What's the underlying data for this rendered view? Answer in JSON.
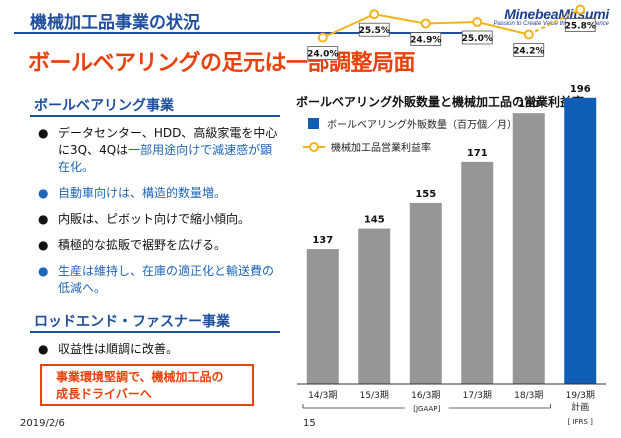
{
  "slide": {
    "title": "機械加工品事業の状況",
    "headline": "ボールベアリングの足元は一部調整局面",
    "date": "2019/2/6",
    "page": "15"
  },
  "logo": {
    "brand": "MinebeaMitsumi",
    "tagline": "Passion to Create Value through Difference"
  },
  "section1": {
    "title": "ボールベアリング事業",
    "bullets": [
      {
        "line1": "データセンター、HDD、高級家電を中心",
        "line2": "に3Q、4Qは一部用途向けで減速感が顕",
        "line3": "在化。",
        "color": "mixed"
      },
      {
        "line1": "自動車向けは、構造的数量増。",
        "color": "blue"
      },
      {
        "line1": "内販は、ピボット向けで縮小傾向。",
        "color": "black"
      },
      {
        "line1": "積極的な拡販で裾野を広げる。",
        "color": "black"
      },
      {
        "line1": "生産は維持し、在庫の適正化と輸送費の",
        "line2": "低減へ。",
        "color": "blue"
      }
    ],
    "bullet1_prefix": "に3Q、4Qは",
    "bullet1_blue": "一部用途向けで減速感が顕",
    "bullet_mark": "●"
  },
  "section2": {
    "title": "ロッドエンド・ファスナー事業",
    "bullet": "収益性は順調に改善。",
    "callout_line1": "事業環境堅調で、機械加工品の",
    "callout_line2": "成長ドライバーへ"
  },
  "chart_title": "ボールベアリング外販数量と機械加工品の営業利益率",
  "chart_data": {
    "type": "bar",
    "categories": [
      "14/3期",
      "15/3期",
      "16/3期",
      "17/3期",
      "18/3期",
      "19/3期"
    ],
    "category_sublabels": [
      "",
      "",
      "",
      "",
      "",
      "計画"
    ],
    "series": [
      {
        "name": "ボールベアリング外販数量（百万個／月）",
        "type": "bar",
        "values": [
          137,
          145,
          155,
          171,
          190,
          196
        ],
        "labels": [
          "137",
          "145",
          "155",
          "171",
          "190",
          "196"
        ],
        "colors": [
          "#969696",
          "#969696",
          "#969696",
          "#969696",
          "#969696",
          "#0f5db4"
        ]
      },
      {
        "name": "機械加工品営業利益率",
        "type": "line",
        "values": [
          24.0,
          25.5,
          24.9,
          25.0,
          24.2,
          25.8
        ],
        "labels": [
          "24.0%",
          "25.5%",
          "24.9%",
          "25.0%",
          "24.2%",
          "25.8%"
        ],
        "color": "#f5b31b",
        "last_segment_style": "dashed"
      }
    ],
    "bracket_labels": {
      "jgaap": "[JGAAP]",
      "ifrs": "[ IFRS ]"
    },
    "colors": {
      "bar": "#969696",
      "bar_plan": "#0f5db4",
      "line": "#f5b31b",
      "marker_fill": "#ffffff"
    }
  }
}
